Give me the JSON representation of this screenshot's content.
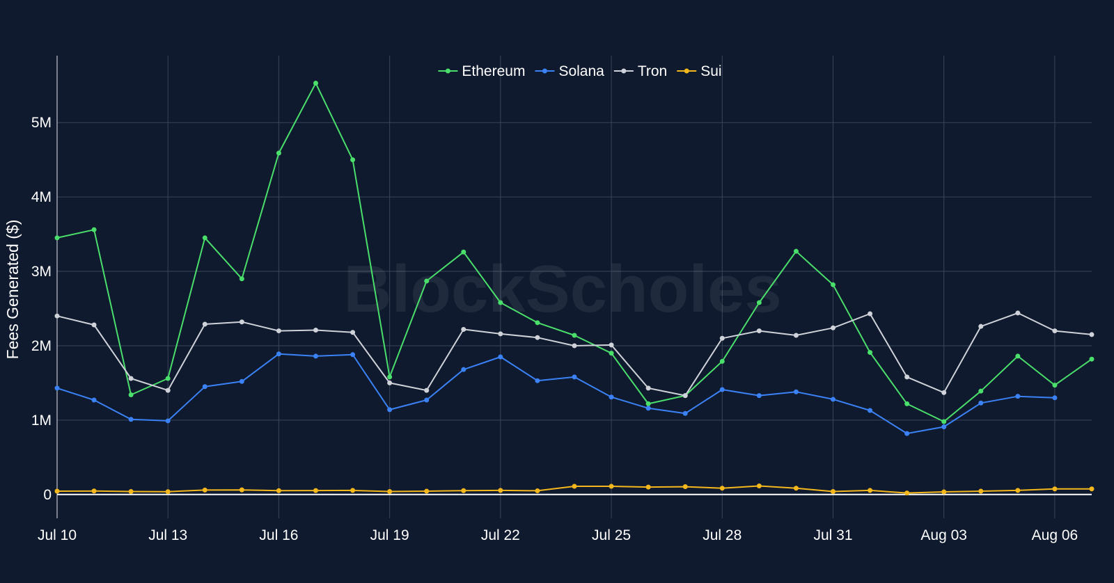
{
  "chart_data": {
    "type": "line",
    "title": "",
    "xlabel": "",
    "ylabel": "Fees Generated ($)",
    "watermark": "BlockScholes",
    "x": [
      "2024-07-10",
      "2024-07-11",
      "2024-07-12",
      "2024-07-13",
      "2024-07-14",
      "2024-07-15",
      "2024-07-16",
      "2024-07-17",
      "2024-07-18",
      "2024-07-19",
      "2024-07-20",
      "2024-07-21",
      "2024-07-22",
      "2024-07-23",
      "2024-07-24",
      "2024-07-25",
      "2024-07-26",
      "2024-07-27",
      "2024-07-28",
      "2024-07-29",
      "2024-07-30",
      "2024-07-31",
      "2024-08-01",
      "2024-08-02",
      "2024-08-03",
      "2024-08-04",
      "2024-08-05",
      "2024-08-06",
      "2024-08-07"
    ],
    "xlim": [
      "2024-07-10",
      "2024-08-07"
    ],
    "x_ticks": [
      "Jul 10",
      "Jul 13",
      "Jul 16",
      "Jul 19",
      "Jul 22",
      "Jul 25",
      "Jul 28",
      "Jul 31",
      "Aug 03",
      "Aug 06"
    ],
    "ylim": [
      -320000,
      5900000
    ],
    "y_ticks": [
      {
        "value": 0,
        "label": "0"
      },
      {
        "value": 1000000,
        "label": "1M"
      },
      {
        "value": 2000000,
        "label": "2M"
      },
      {
        "value": 3000000,
        "label": "3M"
      },
      {
        "value": 4000000,
        "label": "4M"
      },
      {
        "value": 5000000,
        "label": "5M"
      }
    ],
    "grid": true,
    "legend_position": "top-center",
    "series": [
      {
        "name": "Ethereum",
        "color": "#4ade6b",
        "values": [
          3450000,
          3560000,
          1340000,
          1560000,
          3450000,
          2900000,
          4590000,
          5530000,
          4500000,
          1580000,
          2870000,
          3260000,
          2580000,
          2310000,
          2140000,
          1900000,
          1220000,
          1330000,
          1790000,
          2580000,
          3270000,
          2820000,
          1910000,
          1220000,
          980000,
          1390000,
          1860000,
          1470000,
          1820000
        ]
      },
      {
        "name": "Solana",
        "color": "#3b82f6",
        "values": [
          1430000,
          1270000,
          1010000,
          990000,
          1450000,
          1520000,
          1890000,
          1860000,
          1880000,
          1140000,
          1270000,
          1680000,
          1850000,
          1530000,
          1580000,
          1310000,
          1160000,
          1090000,
          1410000,
          1330000,
          1380000,
          1280000,
          1130000,
          820000,
          910000,
          1230000,
          1320000,
          1300000,
          null
        ]
      },
      {
        "name": "Tron",
        "color": "#cfd2d8",
        "values": [
          2400000,
          2280000,
          1560000,
          1400000,
          2290000,
          2320000,
          2200000,
          2210000,
          2180000,
          1500000,
          1400000,
          2220000,
          2160000,
          2110000,
          2000000,
          2010000,
          1430000,
          1330000,
          2100000,
          2200000,
          2140000,
          2240000,
          2430000,
          1580000,
          1370000,
          2260000,
          2440000,
          2200000,
          2150000
        ]
      },
      {
        "name": "Sui",
        "color": "#f5b81c",
        "values": [
          45000,
          47000,
          40000,
          38000,
          60000,
          62000,
          52000,
          53000,
          55000,
          40000,
          45000,
          52000,
          55000,
          50000,
          110000,
          110000,
          100000,
          105000,
          85000,
          115000,
          85000,
          40000,
          55000,
          20000,
          35000,
          45000,
          55000,
          75000,
          75000
        ]
      }
    ]
  }
}
